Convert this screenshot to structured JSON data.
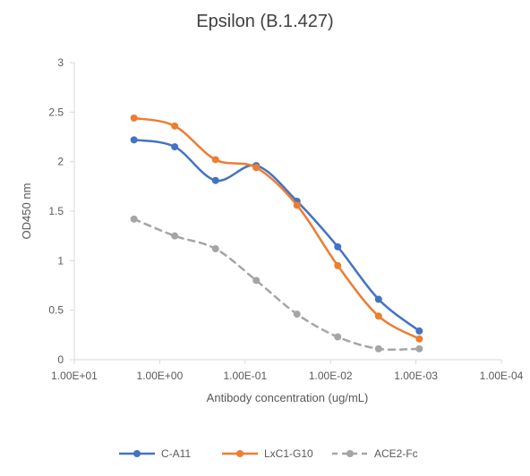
{
  "chart_data": {
    "type": "line",
    "title": "Epsilon (B.1.427)",
    "xlabel": "Antibody concentration (ug/mL)",
    "ylabel": "OD450 nm",
    "x_scale": "log",
    "x_reversed": true,
    "xlim": [
      10,
      0.0001
    ],
    "ylim": [
      0,
      3
    ],
    "x_ticks": [
      10,
      1,
      0.1,
      0.01,
      0.001,
      0.0001
    ],
    "x_tick_labels": [
      "1.00E+01",
      "1.00E+00",
      "1.00E-01",
      "1.00E-02",
      "1.00E-03",
      "1.00E-04"
    ],
    "y_ticks": [
      0,
      0.5,
      1,
      1.5,
      2,
      2.5,
      3
    ],
    "y_tick_labels": [
      "0",
      "0.5",
      "1",
      "1.5",
      "2",
      "2.5",
      "3"
    ],
    "grid": false,
    "smooth": true,
    "legend_position": "bottom",
    "x": [
      2,
      0.667,
      0.222,
      0.0741,
      0.0247,
      0.00823,
      0.00274,
      0.000914
    ],
    "series": [
      {
        "name": "C-A11",
        "color": "#4472C4",
        "dash": "solid",
        "values": [
          2.22,
          2.15,
          1.81,
          1.96,
          1.6,
          1.14,
          0.61,
          0.29
        ]
      },
      {
        "name": "LxC1-G10",
        "color": "#ED7D31",
        "dash": "solid",
        "values": [
          2.44,
          2.36,
          2.02,
          1.94,
          1.56,
          0.95,
          0.44,
          0.21
        ]
      },
      {
        "name": "ACE2-Fc",
        "color": "#A5A5A5",
        "dash": "dashed",
        "values": [
          1.42,
          1.25,
          1.12,
          0.8,
          0.46,
          0.23,
          0.11,
          0.11
        ]
      }
    ]
  }
}
